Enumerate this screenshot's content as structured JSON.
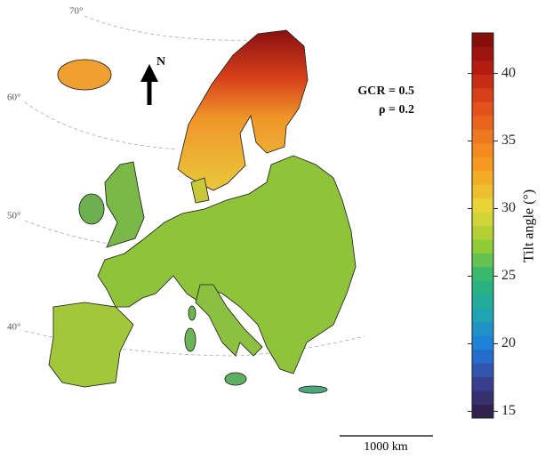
{
  "map": {
    "latitude_labels": [
      "70°",
      "60°",
      "50°",
      "40°"
    ],
    "north_label": "N",
    "annotations": [
      "GCR = 0.5",
      "ρ = 0.2"
    ],
    "colorbar": {
      "label": "Tilt angle (°)",
      "range": [
        14.5,
        43
      ],
      "ticks": [
        15,
        20,
        25,
        30,
        35,
        40
      ],
      "colors": [
        "#2d1a3f",
        "#3a3f8f",
        "#1e7be0",
        "#1fa6b0",
        "#2bb673",
        "#9acd32",
        "#e8d83a",
        "#f5a623",
        "#f07a20",
        "#e04a1a",
        "#b51c10",
        "#7a0a0a"
      ]
    },
    "scale_bar": "1000 km"
  }
}
